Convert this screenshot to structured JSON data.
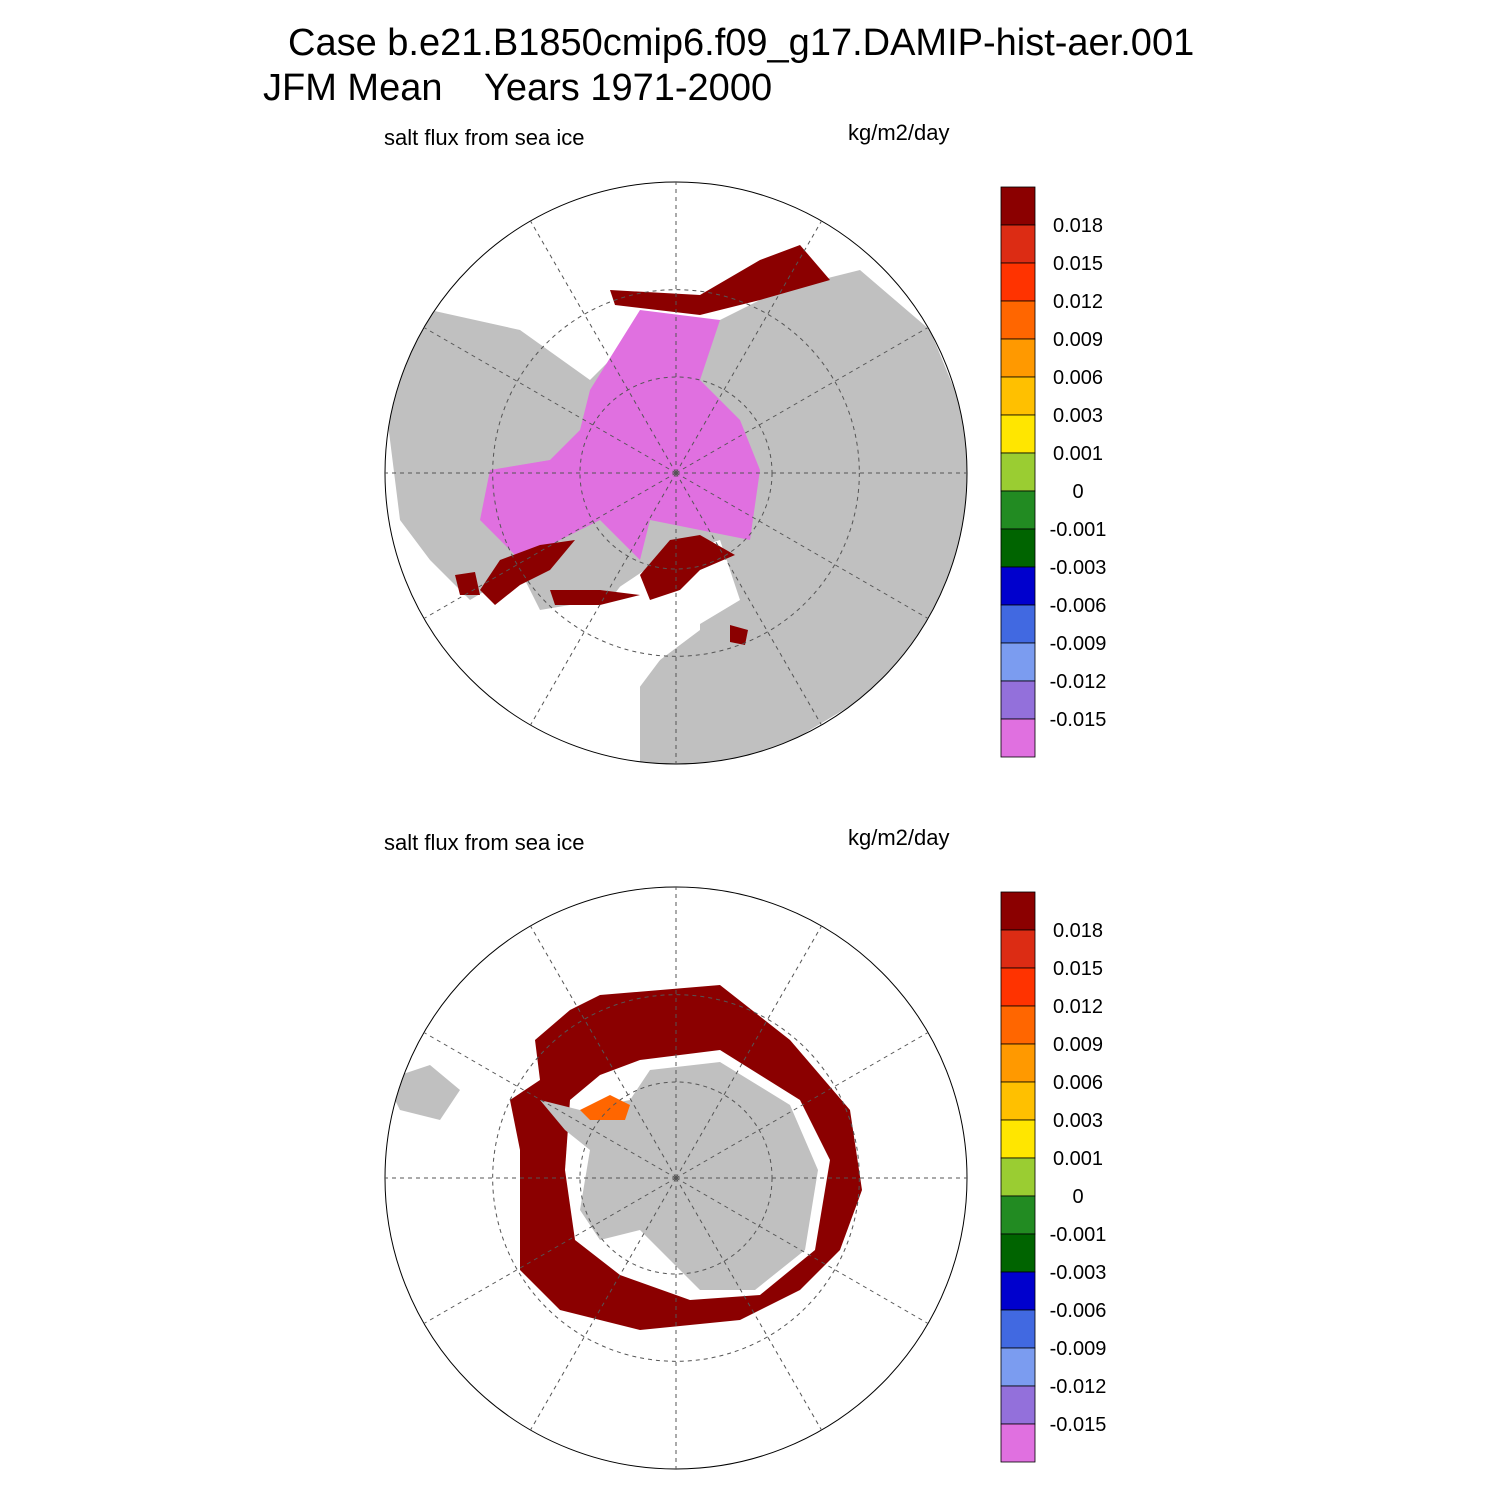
{
  "header": {
    "title": "Case b.e21.B1850cmip6.f09_g17.DAMIP-hist-aer.001",
    "subtitle": "JFM Mean    Years 1971-2000"
  },
  "colorbar_colors": [
    "#8b0000",
    "#dc2c14",
    "#ff3300",
    "#ff6600",
    "#ff9900",
    "#ffc000",
    "#ffe600",
    "#9acd32",
    "#228b22",
    "#006400",
    "#0000cd",
    "#4169e1",
    "#7b9cf0",
    "#9370db",
    "#e070e0"
  ],
  "panels": [
    {
      "left_title": "salt flux from sea ice",
      "units": "kg/m2/day",
      "colorbar_labels": [
        0.018,
        0.015,
        0.012,
        0.009,
        0.006,
        0.003,
        0.001,
        0,
        -0.001,
        -0.003,
        -0.006,
        -0.009,
        -0.012,
        -0.015
      ]
    },
    {
      "left_title": "salt flux from sea ice",
      "units": "kg/m2/day",
      "colorbar_labels": [
        0.018,
        0.015,
        0.012,
        0.009,
        0.006,
        0.003,
        0.001,
        0,
        -0.001,
        -0.003,
        -0.006,
        -0.009,
        -0.012,
        -0.015
      ]
    }
  ]
}
